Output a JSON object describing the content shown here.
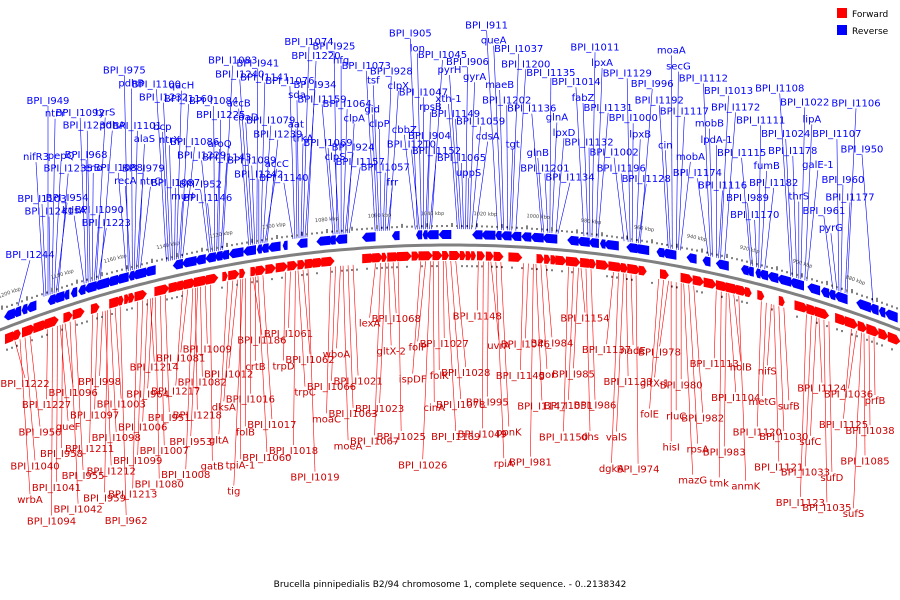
{
  "caption": "Brucella pinnipedialis B2/94 chromosome 1, complete sequence. - 0..2138342",
  "legend": [
    {
      "name": "Forward",
      "color": "#ff0000"
    },
    {
      "name": "Reverse",
      "color": "#0000ff"
    }
  ],
  "colors": {
    "forward": "#ff0000",
    "reverse": "#0000ff",
    "backbone": "#808080"
  },
  "ticks": [
    "1200 kbp",
    "1180 kbp",
    "1160 kbp",
    "1140 kbp",
    "1120 kbp",
    "1100 kbp",
    "1080 kbp",
    "1060 kbp",
    "1040 kbp",
    "1020 kbp",
    "1000 kbp",
    "980 kbp",
    "960 kbp",
    "940 kbp",
    "920 kbp",
    "900 kbp",
    "880 kbp"
  ],
  "reverse_labels": [
    "BPI_I1244",
    "BPI_I1241",
    "BPI_I1235",
    "BPI_I1230",
    "BPI_I1223",
    "recA",
    "alaS",
    "BPI_I1232",
    "murI",
    "BPI_I1229",
    "BPI_I1225",
    "BPI_I1240",
    "BPI_I1242",
    "BPI_I1239",
    "sda",
    "BPI_I1220",
    "clpS",
    "clpA",
    "tsf",
    "frr",
    "BPI_I1210",
    "rpsB",
    "pyrH",
    "uppS",
    "cdsA",
    "BPI_I1202",
    "BPI_I1200",
    "BPI_I1201",
    "lpxD",
    "fabZ",
    "lpxA",
    "BPI_I1196",
    "lpxB",
    "BPI_I1192",
    "secG",
    "BPI_I1174",
    "lpdA-1",
    "BPI_I1172",
    "BPI_I1170",
    "BPI_I1182",
    "BPI_I1178",
    "lipA",
    "pyrG",
    "BPI_I1177",
    "nifR3",
    "ntrY",
    "kdsA",
    "eno",
    "pdhA",
    "pdhB",
    "ntrC",
    "ntrX",
    "BPI_I1160",
    "BPI_I1146",
    "BPI_I1143",
    "coaD",
    "BPI_I1141",
    "BPI_I1140",
    "trkA",
    "BPI_I1159",
    "hfq",
    "BPI_I1157",
    "clpP",
    "clpX",
    "lon",
    "BPI_I1152",
    "BPI_I1149",
    "gyrA",
    "queA",
    "tgt",
    "BPI_I1136",
    "BPI_I1135",
    "BPI_I1134",
    "BPI_I1132",
    "BPI_I1131",
    "BPI_I1129",
    "BPI_I1128",
    "cin",
    "BPI_I1117",
    "BPI_I1112",
    "BPI_I1116",
    "BPI_I1115",
    "BPI_I1111",
    "BPI_I1108",
    "thrS",
    "galE-1",
    "BPI_I1107",
    "BPI_I1106",
    "BPI_I1103",
    "pepQ",
    "BPI_I1092",
    "BPI_I1090",
    "BPI_I1088",
    "BPI_I1101",
    "BPI_I1100",
    "BPI_I1087",
    "BPI_I1086",
    "BPI_I1084",
    "BPI_I1083",
    "BPI_I1089",
    "BPI_I1079",
    "BPI_I1076",
    "BPI_I1074",
    "BPI_I1069",
    "BPI_I1064",
    "BPI_I1073",
    "BPI_I1057",
    "cbbZ",
    "BPI_I1047",
    "BPI_I1045",
    "BPI_I1065",
    "BPI_I1059",
    "maeB",
    "BPI_I1037",
    "glnB",
    "glnA",
    "BPI_I1014",
    "BPI_I1011",
    "BPI_I1002",
    "BPI_I1000",
    "BPI_I996",
    "moaA",
    "mobA",
    "mobB",
    "BPI_I1013",
    "BPI_I989",
    "fumB",
    "BPI_I1024",
    "BPI_I1022",
    "BPI_I961",
    "BPI_I960",
    "BPI_I950",
    "BPI_I949",
    "BPI_I954",
    "BPI_I968",
    "tyrS",
    "BPI_I975",
    "BPI_I979",
    "bcp",
    "qacH",
    "BPI_I952",
    "aroQ",
    "accB",
    "BPI_I941",
    "accC",
    "aat",
    "BPI_I934",
    "BPI_I925",
    "BPI_I924",
    "gid",
    "BPI_I928",
    "BPI_I905",
    "BPI_I904",
    "xth-1",
    "BPI_I906",
    "BPI_I911"
  ],
  "forward_labels": [
    "BPI_I1222",
    "BPI_I1227",
    "queF",
    "BPI_I1211",
    "BPI_I1212",
    "BPI_I1213",
    "BPI_I1214",
    "BPI_I1217",
    "BPI_I1218",
    "gltA",
    "tpiA-1",
    "BPI_I1186",
    "trpD",
    "trpC",
    "moaC",
    "moeA",
    "lexA",
    "gltX-2",
    "ispDF",
    "cinA",
    "BPI_I1169",
    "BPI_I1148",
    "uvrA",
    "BPI_I1145",
    "BPI_I1147",
    "BPI_I1150",
    "BPI_I1154",
    "BPI_I1137",
    "BPI_I1133",
    "folE",
    "hisI",
    "mazG",
    "BPI_I1113",
    "BPI_I1104",
    "BPI_I1120",
    "BPI_I1121",
    "BPI_I1123",
    "BPI_I1124",
    "BPI_I1125",
    "BPI_I1085",
    "wrbA",
    "BPI_I1094",
    "BPI_I1096",
    "BPI_I1097",
    "BPI_I1098",
    "BPI_I1099",
    "BPI_I1080",
    "BPI_I1081",
    "BPI_I1082",
    "dksA",
    "folB",
    "BPI_I1060",
    "BPI_I1061",
    "BPI_I1062",
    "BPI_I1066",
    "BPI_I1063",
    "BPI_I1067",
    "BPI_I1068",
    "folP",
    "folK",
    "BPI_I1078",
    "BPI_I1049",
    "rpiA",
    "BPI_I1046",
    "gor",
    "BPI_I1051",
    "dhs",
    "dgkA",
    "nadE",
    "gltX-1",
    "rluC",
    "rpsA",
    "tmk",
    "holB",
    "metG",
    "BPI_I1030",
    "BPI_I1033",
    "BPI_I1035",
    "BPI_I1036",
    "BPI_I1038",
    "BPI_I1040",
    "BPI_I1041",
    "BPI_I1042",
    "BPI_I998",
    "BPI_I1003",
    "BPI_I1006",
    "BPI_I1007",
    "BPI_I1008",
    "BPI_I1009",
    "BPI_I1012",
    "BPI_I1016",
    "BPI_I1017",
    "BPI_I1018",
    "BPI_I1019",
    "wboA",
    "BPI_I1021",
    "BPI_I1023",
    "BPI_I1025",
    "BPI_I1026",
    "BPI_I1027",
    "BPI_I1028",
    "BPI_I995",
    "ppnK",
    "BPI_I981",
    "BPI_I984",
    "BPI_I985",
    "BPI_I986",
    "valS",
    "BPI_I974",
    "BPI_I978",
    "BPI_I980",
    "BPI_I982",
    "BPI_I983",
    "anmK",
    "nifS",
    "sufB",
    "sufC",
    "sufD",
    "sufS",
    "prfB",
    "BPI_I956",
    "BPI_I958",
    "BPI_I955",
    "BPI_I959",
    "BPI_I962",
    "BPI_I964",
    "BPI_I951",
    "BPI_I953",
    "gatB",
    "tig",
    "crtB"
  ]
}
